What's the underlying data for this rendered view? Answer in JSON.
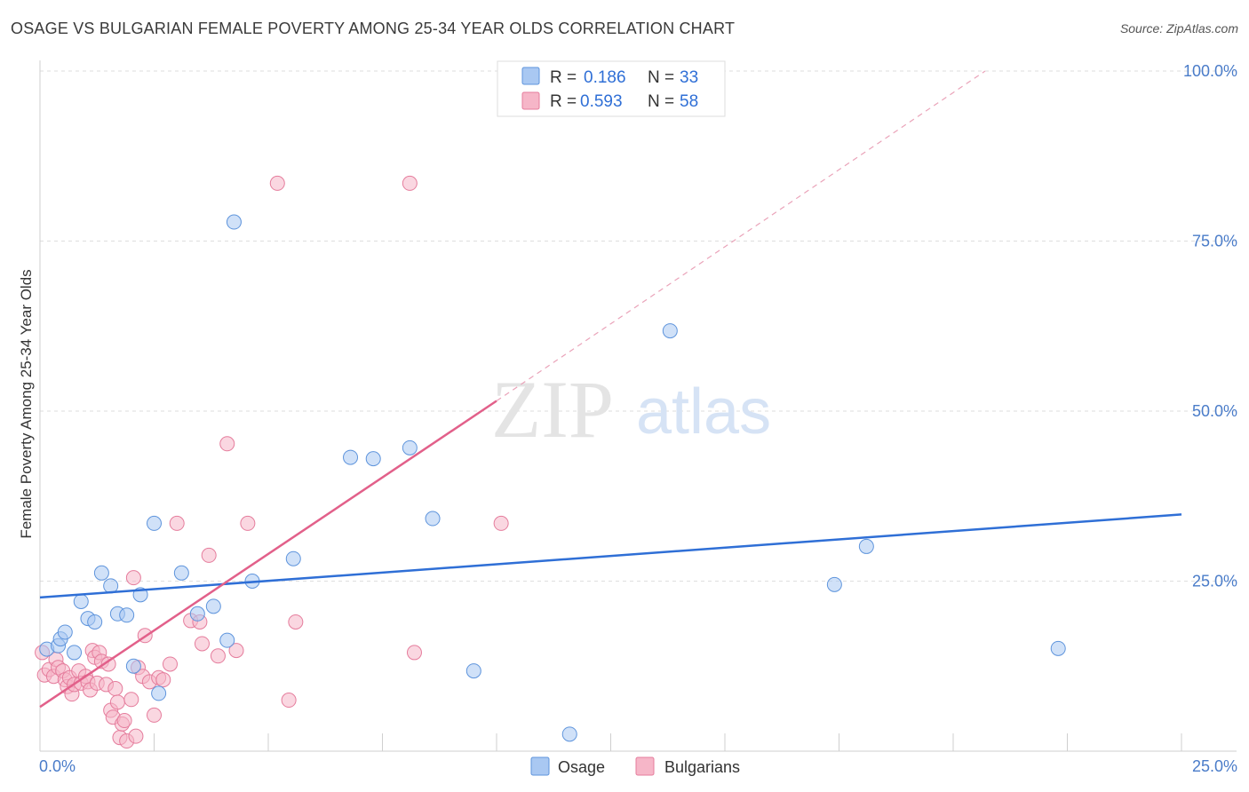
{
  "title": "OSAGE VS BULGARIAN FEMALE POVERTY AMONG 25-34 YEAR OLDS CORRELATION CHART",
  "source": "Source: ZipAtlas.com",
  "watermark": {
    "zip": "ZIP",
    "atlas": "atlas"
  },
  "legend": {
    "rows": [
      {
        "r_label": "R =",
        "r_value": "0.186",
        "n_label": "N =",
        "n_value": "33",
        "color": "#a9c8f2",
        "stroke": "#5e94dc"
      },
      {
        "r_label": "R =",
        "r_value": "0.593",
        "n_label": "N =",
        "n_value": "58",
        "color": "#f6b6c8",
        "stroke": "#e57c9c"
      }
    ]
  },
  "bottom_legend": [
    {
      "label": "Osage",
      "color": "#a9c8f2",
      "stroke": "#5e94dc"
    },
    {
      "label": "Bulgarians",
      "color": "#f6b6c8",
      "stroke": "#e57c9c"
    }
  ],
  "chart_data": {
    "type": "scatter",
    "title": "OSAGE VS BULGARIAN FEMALE POVERTY AMONG 25-34 YEAR OLDS CORRELATION CHART",
    "xlabel": "",
    "ylabel": "Female Poverty Among 25-34 Year Olds",
    "xlim": [
      0,
      25
    ],
    "ylim": [
      0,
      100
    ],
    "x_tick_labels": [
      {
        "value": 0,
        "label": "0.0%"
      },
      {
        "value": 25,
        "label": "25.0%"
      }
    ],
    "y_tick_labels": [
      {
        "value": 25,
        "label": "25.0%"
      },
      {
        "value": 50,
        "label": "50.0%"
      },
      {
        "value": 75,
        "label": "75.0%"
      },
      {
        "value": 100,
        "label": "100.0%"
      }
    ],
    "grid": true,
    "series": [
      {
        "name": "Osage",
        "color": "#a9c8f2",
        "stroke": "#5e94dc",
        "trend": {
          "x": [
            0,
            25
          ],
          "y": [
            22.6,
            34.8
          ],
          "color": "#2f6fd6"
        },
        "points": [
          [
            0.15,
            15.0
          ],
          [
            0.4,
            15.5
          ],
          [
            0.45,
            16.5
          ],
          [
            0.55,
            17.5
          ],
          [
            0.75,
            14.5
          ],
          [
            0.9,
            22.0
          ],
          [
            1.05,
            19.5
          ],
          [
            1.2,
            19.0
          ],
          [
            1.35,
            26.2
          ],
          [
            1.55,
            24.3
          ],
          [
            1.7,
            20.2
          ],
          [
            1.9,
            20.0
          ],
          [
            2.05,
            12.5
          ],
          [
            2.2,
            23.0
          ],
          [
            2.5,
            33.5
          ],
          [
            2.6,
            8.5
          ],
          [
            3.1,
            26.2
          ],
          [
            3.45,
            20.2
          ],
          [
            3.8,
            21.3
          ],
          [
            4.1,
            16.3
          ],
          [
            4.25,
            77.8
          ],
          [
            4.65,
            25.0
          ],
          [
            5.55,
            28.3
          ],
          [
            6.8,
            43.2
          ],
          [
            7.3,
            43.0
          ],
          [
            8.1,
            44.6
          ],
          [
            8.6,
            34.2
          ],
          [
            9.5,
            11.8
          ],
          [
            11.6,
            2.5
          ],
          [
            13.8,
            61.8
          ],
          [
            17.4,
            24.5
          ],
          [
            18.1,
            30.1
          ],
          [
            22.3,
            15.1
          ]
        ]
      },
      {
        "name": "Bulgarians",
        "color": "#f6b6c8",
        "stroke": "#e57c9c",
        "trend": {
          "x": [
            0,
            10.0
          ],
          "y": [
            6.5,
            51.5
          ],
          "color": "#e2608a",
          "dash_to": {
            "x": 20.7,
            "y": 100
          }
        },
        "points": [
          [
            0.05,
            14.5
          ],
          [
            0.1,
            11.2
          ],
          [
            0.2,
            12.0
          ],
          [
            0.3,
            11.0
          ],
          [
            0.35,
            13.5
          ],
          [
            0.4,
            12.3
          ],
          [
            0.5,
            11.8
          ],
          [
            0.55,
            10.5
          ],
          [
            0.6,
            9.5
          ],
          [
            0.65,
            10.8
          ],
          [
            0.7,
            8.4
          ],
          [
            0.75,
            9.8
          ],
          [
            0.85,
            11.8
          ],
          [
            0.9,
            10.0
          ],
          [
            1.0,
            11.0
          ],
          [
            1.05,
            10.2
          ],
          [
            1.1,
            9.0
          ],
          [
            1.15,
            14.8
          ],
          [
            1.2,
            13.8
          ],
          [
            1.25,
            10.0
          ],
          [
            1.3,
            14.5
          ],
          [
            1.35,
            13.2
          ],
          [
            1.45,
            9.8
          ],
          [
            1.5,
            12.8
          ],
          [
            1.55,
            6.0
          ],
          [
            1.6,
            5.0
          ],
          [
            1.65,
            9.2
          ],
          [
            1.7,
            7.2
          ],
          [
            1.75,
            2.0
          ],
          [
            1.8,
            4.0
          ],
          [
            1.85,
            4.5
          ],
          [
            1.9,
            1.5
          ],
          [
            2.0,
            7.6
          ],
          [
            2.05,
            25.5
          ],
          [
            2.1,
            2.2
          ],
          [
            2.15,
            12.3
          ],
          [
            2.25,
            11.0
          ],
          [
            2.3,
            17.0
          ],
          [
            2.4,
            10.2
          ],
          [
            2.5,
            5.3
          ],
          [
            2.6,
            10.8
          ],
          [
            2.7,
            10.5
          ],
          [
            2.85,
            12.8
          ],
          [
            3.0,
            33.5
          ],
          [
            3.3,
            19.2
          ],
          [
            3.5,
            19.0
          ],
          [
            3.55,
            15.8
          ],
          [
            3.7,
            28.8
          ],
          [
            3.9,
            14.0
          ],
          [
            4.1,
            45.2
          ],
          [
            4.3,
            14.8
          ],
          [
            4.55,
            33.5
          ],
          [
            5.2,
            83.5
          ],
          [
            5.45,
            7.5
          ],
          [
            5.6,
            19.0
          ],
          [
            8.1,
            83.5
          ],
          [
            8.2,
            14.5
          ],
          [
            10.1,
            33.5
          ]
        ]
      }
    ]
  }
}
